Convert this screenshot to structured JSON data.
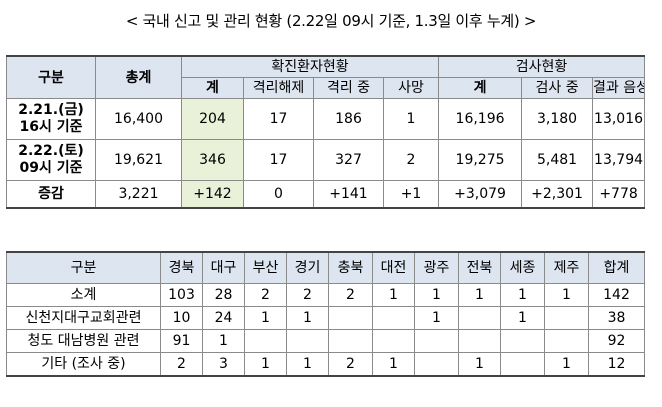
{
  "title": "< 국내 신고 및 관리 현황 (2.22일 09시 기준, 1.3일 이후 누계) >",
  "table1": {
    "h_group": "구분",
    "h_total": "총계",
    "h_confirmed": "확진환자현황",
    "h_tests": "검사현황",
    "sub": [
      "계",
      "격리해제",
      "격리 중",
      "사망",
      "계",
      "검사 중",
      "결과 음성"
    ],
    "rows": [
      {
        "label1": "2.21.(금)",
        "label2": "16시 기준",
        "vals": [
          "16,400",
          "204",
          "17",
          "186",
          "1",
          "16,196",
          "3,180",
          "13,016"
        ]
      },
      {
        "label1": "2.22.(토)",
        "label2": "09시 기준",
        "vals": [
          "19,621",
          "346",
          "17",
          "327",
          "2",
          "19,275",
          "5,481",
          "13,794"
        ]
      },
      {
        "label1": "증감",
        "label2": "",
        "vals": [
          "3,221",
          "+142",
          "0",
          "+141",
          "+1",
          "+3,079",
          "+2,301",
          "+778"
        ]
      }
    ]
  },
  "table2": {
    "header": [
      "구분",
      "경북",
      "대구",
      "부산",
      "경기",
      "충북",
      "대전",
      "광주",
      "전북",
      "세종",
      "제주",
      "합계"
    ],
    "rows": [
      [
        "소계",
        "103",
        "28",
        "2",
        "2",
        "2",
        "1",
        "1",
        "1",
        "1",
        "1",
        "142"
      ],
      [
        "신천지대구교회관련",
        "10",
        "24",
        "1",
        "1",
        "",
        "",
        "1",
        "",
        "1",
        "",
        "38"
      ],
      [
        "청도 대남병원 관련",
        "91",
        "1",
        "",
        "",
        "",
        "",
        "",
        "",
        "",
        "",
        "92"
      ],
      [
        "기타 (조사 중)",
        "2",
        "3",
        "1",
        "1",
        "2",
        "1",
        "",
        "1",
        "",
        "1",
        "12"
      ]
    ]
  }
}
